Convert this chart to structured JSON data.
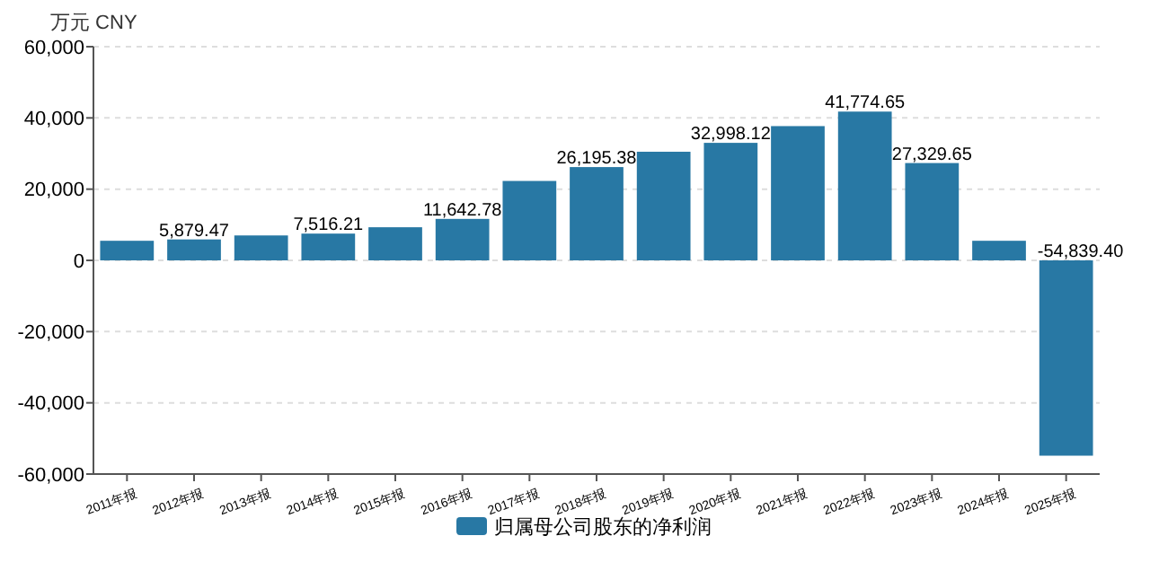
{
  "chart_data": {
    "type": "bar",
    "ylabel": "万元  CNY",
    "categories": [
      "2011年报",
      "2012年报",
      "2013年报",
      "2014年报",
      "2015年报",
      "2016年报",
      "2017年报",
      "2018年报",
      "2019年报",
      "2020年报",
      "2021年报",
      "2022年报",
      "2023年报",
      "2024年报",
      "2025年报"
    ],
    "series": [
      {
        "name": "归属母公司股东的净利润",
        "color": "#2878a4",
        "values": [
          5500,
          5879.47,
          7000,
          7516.21,
          9300,
          11642.78,
          22300,
          26195.38,
          30500,
          32998.12,
          37700,
          41774.65,
          27329.65,
          5500,
          -54839.4
        ],
        "value_labels": [
          null,
          "5,879.47",
          null,
          "7,516.21",
          null,
          "11,642.78",
          null,
          "26,195.38",
          null,
          "32,998.12",
          null,
          "41,774.65",
          "27,329.65",
          null,
          "-54,839.40"
        ]
      }
    ],
    "ylim": [
      -60000,
      60000
    ],
    "yticks": [
      {
        "value": -60000,
        "label": "-60,000"
      },
      {
        "value": -40000,
        "label": "-40,000"
      },
      {
        "value": -20000,
        "label": "-20,000"
      },
      0,
      {
        "value": 20000,
        "label": "20,000"
      },
      {
        "value": 40000,
        "label": "40,000"
      },
      {
        "value": 60000,
        "label": "60,000"
      }
    ],
    "grid": "y",
    "legend": "bottom"
  }
}
